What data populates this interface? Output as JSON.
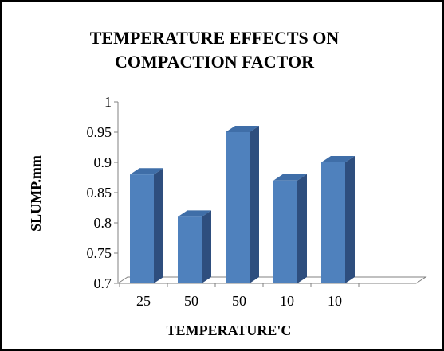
{
  "chart_data": {
    "type": "bar",
    "title_lines": [
      "TEMPERATURE  EFFECTS ON",
      "COMPACTION FACTOR"
    ],
    "xlabel": "TEMPERATURE'C",
    "ylabel": "SLUMP.mm",
    "categories": [
      "25",
      "50",
      "50",
      "10",
      "10"
    ],
    "values": [
      0.88,
      0.81,
      0.95,
      0.87,
      0.9
    ],
    "ylim": [
      0.7,
      1.0
    ],
    "yticks": [
      "0.7",
      "0.75",
      "0.8",
      "0.85",
      "0.9",
      "0.95",
      "1"
    ],
    "grid": false,
    "legend": "none",
    "bar_style": "3d",
    "colors": {
      "bar_front": "#4F81BD",
      "bar_side": "#2E4E7E",
      "bar_top": "#3F6EA8",
      "axis": "#808080",
      "border": "#000000"
    }
  }
}
